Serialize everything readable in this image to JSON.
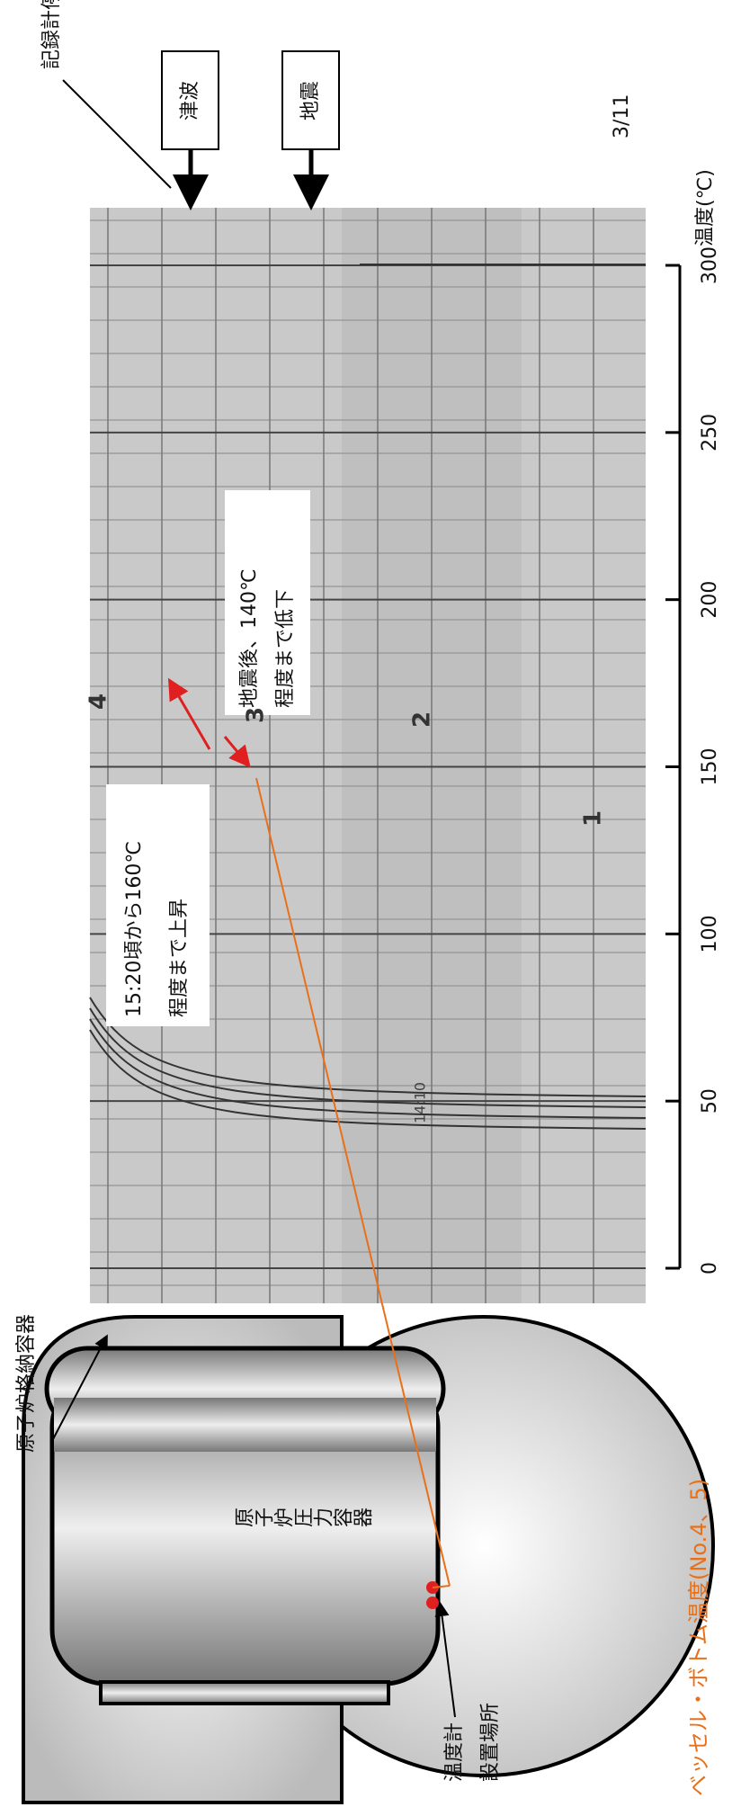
{
  "diagram": {
    "recorder_stop": "記録計停止",
    "tsunami": "津波",
    "earthquake": "地震",
    "date": "3/11",
    "axis": {
      "label": "温度(℃)",
      "ticks": [
        0,
        50,
        100,
        150,
        200,
        250,
        300
      ]
    },
    "chart_marks": [
      "1",
      "2",
      "3",
      "4"
    ],
    "chart_time": "14:10",
    "note_rise": [
      "15:20頃から160℃",
      "程度まで上昇"
    ],
    "note_drop": [
      "地震後、140℃",
      "程度まで低下"
    ],
    "containment": "原子炉格納容器",
    "pressure_vessel": "原子炉圧力容器",
    "sensor_location": [
      "温度計",
      "設置場所"
    ],
    "sensor_name": "ベッセル・ボトム温度(No.4、5)"
  }
}
